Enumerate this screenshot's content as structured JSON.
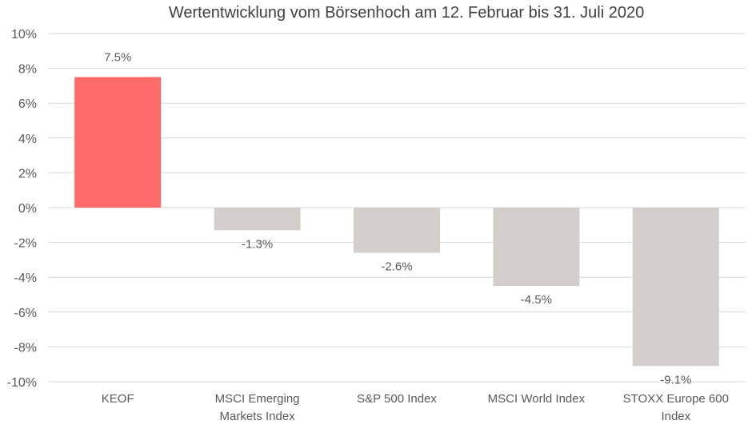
{
  "chart_data": {
    "type": "bar",
    "title": "Wertentwicklung vom Börsenhoch am 12. Februar bis 31. Juli 2020",
    "categories": [
      [
        "KEOF"
      ],
      [
        "MSCI Emerging",
        "Markets Index"
      ],
      [
        "S&P 500 Index"
      ],
      [
        "MSCI World Index"
      ],
      [
        "STOXX Europe 600",
        "Index"
      ]
    ],
    "values": [
      7.5,
      -1.3,
      -2.6,
      -4.5,
      -9.1
    ],
    "data_labels": [
      "7.5%",
      "-1.3%",
      "-2.6%",
      "-4.5%",
      "-9.1%"
    ],
    "colors": [
      "#ff6b6b",
      "#d3cecb",
      "#d3cecb",
      "#d3cecb",
      "#d3cecb"
    ],
    "ylim": [
      -10,
      10
    ],
    "yticks": [
      10,
      8,
      6,
      4,
      2,
      0,
      -2,
      -4,
      -6,
      -8,
      -10
    ],
    "ytick_labels": [
      "10%",
      "8%",
      "6%",
      "4%",
      "2%",
      "0%",
      "-2%",
      "-4%",
      "-6%",
      "-8%",
      "-10%"
    ],
    "xlabel": "",
    "ylabel": "",
    "grid": true,
    "gridline_color": "#d9d9d9"
  }
}
